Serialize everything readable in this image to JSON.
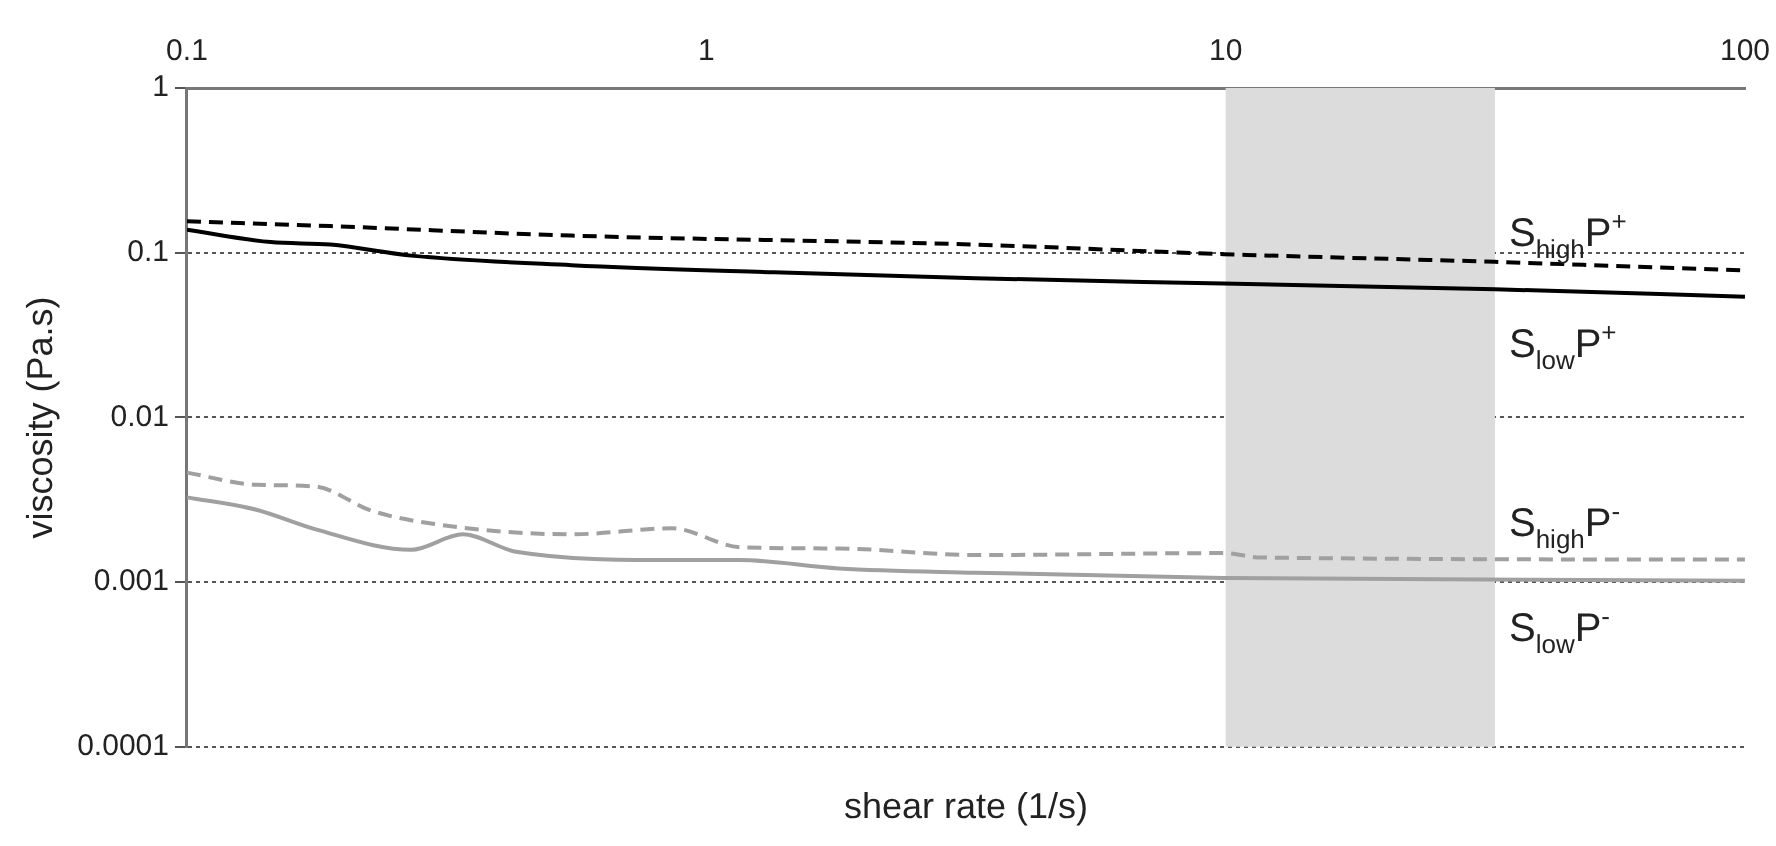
{
  "chart_data": {
    "type": "line",
    "xlabel": "shear rate (1/s)",
    "ylabel": "viscosity (Pa.s)",
    "log": "xy",
    "grid": "y",
    "legend": false,
    "marker": "none",
    "xlim": [
      0.1,
      100
    ],
    "xticks": [
      0.1,
      1,
      10,
      100
    ],
    "ylim": [
      0.0001,
      1
    ],
    "yticks": [
      0.0001,
      0.001,
      0.01,
      0.1,
      1
    ],
    "bands": [
      {
        "axis": "x",
        "from": 10,
        "to": 33,
        "color": "#dcdcdc"
      }
    ],
    "series": [
      {
        "name": "S$_{low}$P$^{+}$",
        "color": "#000000",
        "line_style": "solid",
        "x": [
          0.1,
          0.145,
          0.189,
          0.27,
          0.55,
          1.35,
          3.3,
          9.9,
          33,
          100
        ],
        "values": [
          0.138,
          0.116,
          0.112,
          0.096,
          0.084,
          0.076,
          0.07,
          0.065,
          0.06,
          0.054
        ]
      },
      {
        "name": "S$_{high}$P$^{+}$",
        "color": "#000000",
        "line_style": "dashed",
        "x": [
          0.1,
          0.189,
          0.55,
          3.3,
          9.9,
          33,
          100
        ],
        "values": [
          0.155,
          0.145,
          0.127,
          0.112,
          0.098,
          0.088,
          0.078
        ]
      },
      {
        "name": "S$_{low}$P$^{-}$",
        "color": "#a0a0a0",
        "line_style": "solid",
        "x": [
          0.1,
          0.136,
          0.177,
          0.27,
          0.34,
          0.43,
          0.86,
          1.16,
          1.8,
          3.3,
          9.9,
          100
        ],
        "values": [
          0.00327,
          0.00275,
          0.00209,
          0.00157,
          0.00195,
          0.00153,
          0.00136,
          0.00136,
          0.00121,
          0.00114,
          0.00106,
          0.00102
        ]
      },
      {
        "name": "S$_{high}$P$^{-}$",
        "color": "#a0a0a0",
        "line_style": "dashed",
        "x": [
          0.1,
          0.136,
          0.177,
          0.226,
          0.3,
          0.55,
          0.86,
          1.16,
          1.8,
          3.3,
          9.9,
          11.7,
          100
        ],
        "values": [
          0.00462,
          0.0039,
          0.0038,
          0.00272,
          0.00225,
          0.00195,
          0.00212,
          0.00163,
          0.0016,
          0.00146,
          0.0015,
          0.00141,
          0.00137
        ]
      }
    ]
  }
}
